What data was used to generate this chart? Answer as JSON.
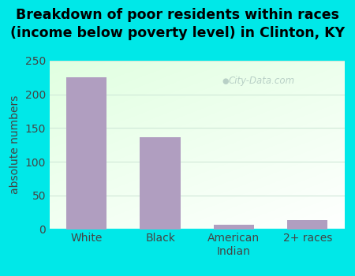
{
  "categories": [
    "White",
    "Black",
    "American\nIndian",
    "2+ races"
  ],
  "values": [
    225,
    137,
    7,
    13
  ],
  "bar_color": "#b09ec0",
  "bar_edge_color": "#a08eb0",
  "title": "Breakdown of poor residents within races\n(income below poverty level) in Clinton, KY",
  "ylabel": "absolute numbers",
  "ylim": [
    0,
    250
  ],
  "yticks": [
    0,
    50,
    100,
    150,
    200,
    250
  ],
  "bg_color": "#00e8e8",
  "watermark": "City-Data.com",
  "title_fontsize": 12.5,
  "ylabel_fontsize": 10,
  "tick_fontsize": 10,
  "grid_color": "#d0e8d8"
}
